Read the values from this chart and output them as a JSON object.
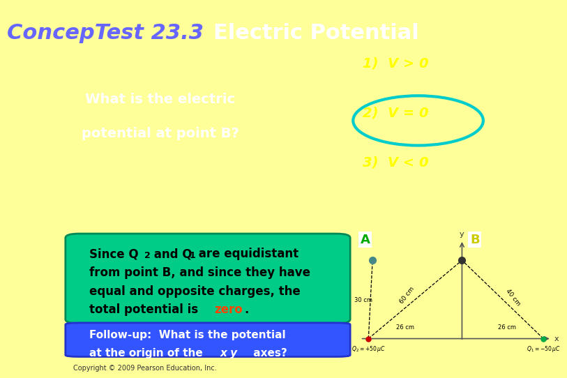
{
  "title_italic": "ConcepTest 23.3",
  "title_normal": "Electric Potential",
  "title_color_italic": "#6666ff",
  "title_color_normal": "#ffffff",
  "title_fontsize": 22,
  "bg_top_color": "#000000",
  "question_text_line1": "What is the electric",
  "question_text_line2": "potential at point B?",
  "question_color": "#ffffff",
  "option1": "1)  V > 0",
  "option2": "2)  V = 0",
  "option3": "3)  V < 0",
  "options_color": "#ffff00",
  "ellipse_color": "#00cccc",
  "answer_box_color": "#00cc88",
  "answer_box_edge_color": "#008855",
  "answer_zero_color": "#ff4400",
  "followup_box_color": "#3355ff",
  "followup_box_edge_color": "#2233cc",
  "followup_text_color": "#ffffff",
  "copyright": "Copyright © 2009 Pearson Education, Inc.",
  "outer_border_color": "#ffff99",
  "diagram_bg": "#e0e0e0"
}
